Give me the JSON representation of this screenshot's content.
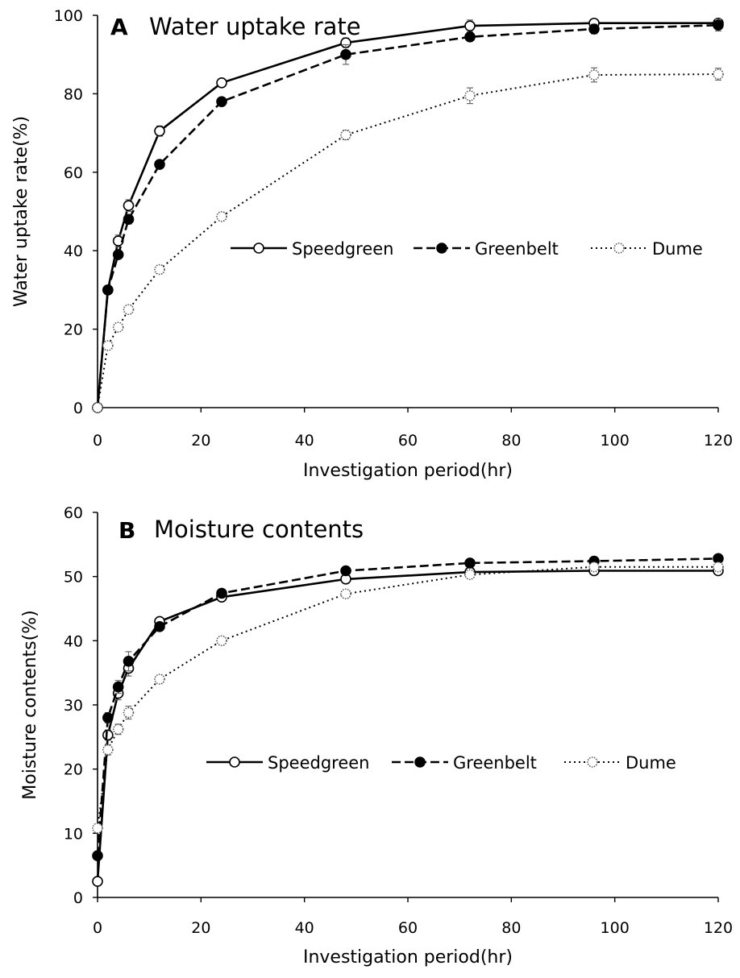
{
  "chart_data": [
    {
      "type": "line",
      "panel_letter": "A",
      "title": "Water uptake rate",
      "xlabel": "Investigation period(hr)",
      "ylabel": "Water uptake rate(%)",
      "xlim": [
        0,
        120
      ],
      "ylim": [
        0,
        100
      ],
      "xticks": [
        0,
        20,
        40,
        60,
        80,
        100,
        120
      ],
      "yticks": [
        0,
        20,
        40,
        60,
        80,
        100
      ],
      "legend_position": "center-right",
      "series": [
        {
          "name": "Speedgreen",
          "style": "solid",
          "marker": "open-circle",
          "x": [
            0,
            2,
            4,
            6,
            12,
            24,
            48,
            72,
            96,
            120
          ],
          "y": [
            0,
            30,
            42.5,
            51.5,
            70.5,
            82.8,
            93,
            97.3,
            98,
            98
          ],
          "err": [
            0,
            1,
            1.5,
            1.5,
            1.3,
            1,
            1.2,
            1.5,
            1,
            1
          ]
        },
        {
          "name": "Greenbelt",
          "style": "dashed",
          "marker": "filled-circle",
          "x": [
            0,
            2,
            4,
            6,
            12,
            24,
            48,
            72,
            96,
            120
          ],
          "y": [
            0,
            30,
            39,
            48,
            62,
            78,
            90,
            94.5,
            96.5,
            97.5
          ],
          "err": [
            0,
            1,
            1,
            1.2,
            1,
            1,
            2.5,
            1,
            1.2,
            1.5
          ]
        },
        {
          "name": "Dume",
          "style": "dotted",
          "marker": "dotted-circle",
          "x": [
            0,
            2,
            4,
            6,
            12,
            24,
            48,
            72,
            96,
            120
          ],
          "y": [
            0,
            15.8,
            20.5,
            25,
            35.2,
            48.7,
            69.5,
            79.5,
            84.8,
            85
          ],
          "err": [
            0,
            0.8,
            0.8,
            1,
            1,
            1,
            1.2,
            2,
            1.8,
            1.5
          ]
        }
      ]
    },
    {
      "type": "line",
      "panel_letter": "B",
      "title": "Moisture contents",
      "xlabel": "Investigation period(hr)",
      "ylabel": "Moisture contents(%)",
      "xlim": [
        0,
        120
      ],
      "ylim": [
        0,
        60
      ],
      "xticks": [
        0,
        20,
        40,
        60,
        80,
        100,
        120
      ],
      "yticks": [
        0,
        10,
        20,
        30,
        40,
        50,
        60
      ],
      "legend_position": "center-right",
      "series": [
        {
          "name": "Speedgreen",
          "style": "solid",
          "marker": "open-circle",
          "x": [
            0,
            2,
            4,
            6,
            12,
            24,
            48,
            72,
            96,
            120
          ],
          "y": [
            2.5,
            25.3,
            31.8,
            35.7,
            43,
            46.8,
            49.6,
            50.7,
            50.9,
            50.9
          ],
          "err": [
            0.3,
            0.8,
            1,
            1.2,
            0.6,
            0.6,
            0.6,
            0.6,
            0.6,
            0.5
          ]
        },
        {
          "name": "Greenbelt",
          "style": "dashed",
          "marker": "filled-circle",
          "x": [
            0,
            2,
            4,
            6,
            12,
            24,
            48,
            72,
            96,
            120
          ],
          "y": [
            6.5,
            28,
            32.8,
            36.8,
            42.2,
            47.4,
            50.9,
            52.1,
            52.4,
            52.8
          ],
          "err": [
            0.4,
            0.8,
            1,
            1.5,
            0.6,
            0.6,
            0.6,
            0.5,
            0.5,
            0.5
          ]
        },
        {
          "name": "Dume",
          "style": "dotted",
          "marker": "dotted-circle",
          "x": [
            0,
            2,
            4,
            6,
            12,
            24,
            48,
            72,
            96,
            120
          ],
          "y": [
            10.8,
            23,
            26.2,
            28.8,
            34,
            40,
            47.3,
            50.3,
            51.5,
            51.5
          ],
          "err": [
            0.4,
            0.8,
            0.8,
            1,
            0.6,
            0.6,
            0.6,
            0.5,
            0.5,
            0.5
          ]
        }
      ]
    }
  ]
}
